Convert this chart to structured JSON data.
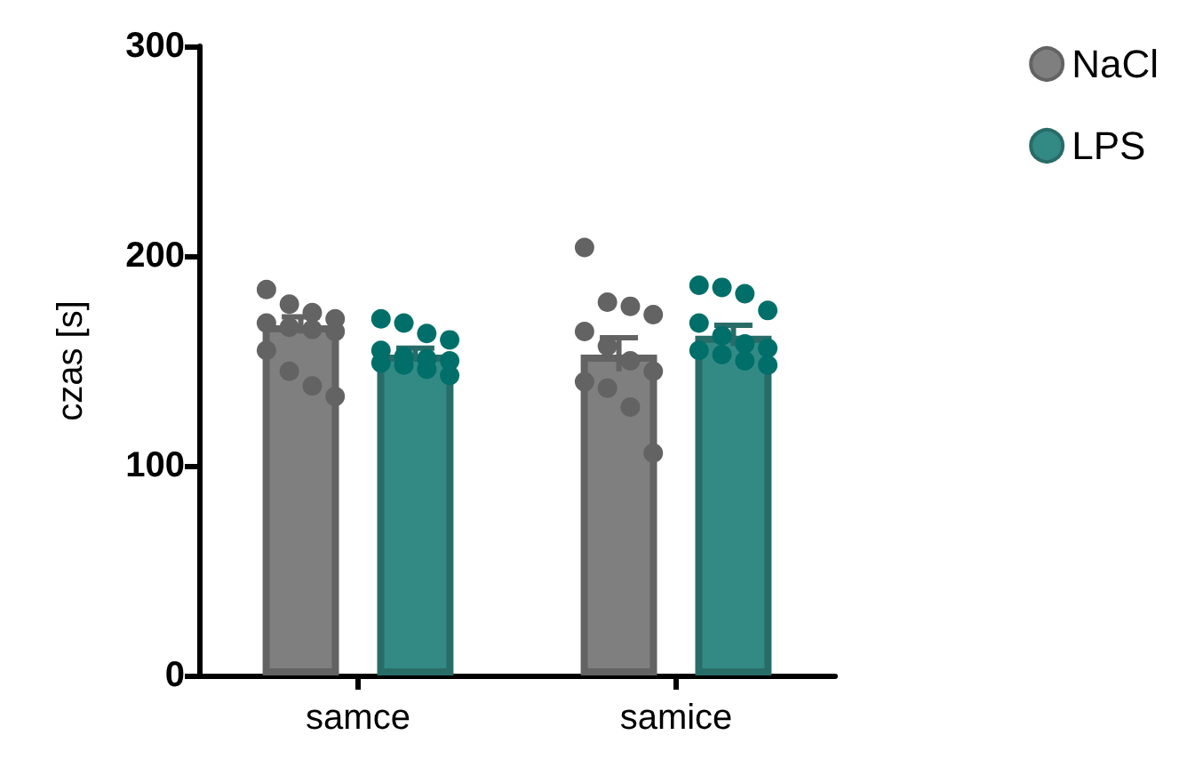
{
  "chart_data": {
    "type": "bar",
    "ylabel": "czas [s]",
    "categories": [
      "samce",
      "samice"
    ],
    "ylim": [
      0,
      300
    ],
    "yticks": [
      0,
      100,
      200,
      300
    ],
    "grid": false,
    "legend": "top right",
    "marker": "circle",
    "series": [
      {
        "name": "NaCl",
        "color": "#7f7f7f",
        "values": [
          167,
          153
        ],
        "errors": [
          4,
          8
        ]
      },
      {
        "name": "LPS",
        "color": "#338a85",
        "values": [
          153,
          162
        ],
        "errors": [
          3,
          5
        ]
      },
      {
        "type": "scatter",
        "color": "#636363",
        "x": [
          "samce",
          "samce",
          "samce",
          "samce",
          "samce",
          "samce",
          "samce",
          "samce",
          "samce",
          "samce",
          "samce",
          "samce",
          "samice",
          "samice",
          "samice",
          "samice",
          "samice",
          "samice",
          "samice",
          "samice",
          "samice",
          "samice",
          "samice",
          "samice"
        ],
        "values": [
          184,
          177,
          173,
          170,
          168,
          166,
          165,
          164,
          155,
          145,
          138,
          133,
          204,
          178,
          176,
          172,
          164,
          157,
          150,
          145,
          140,
          137,
          128,
          106
        ]
      },
      {
        "type": "scatter",
        "color": "#006f69",
        "x": [
          "samce",
          "samce",
          "samce",
          "samce",
          "samce",
          "samce",
          "samce",
          "samce",
          "samce",
          "samce",
          "samce",
          "samce",
          "samice",
          "samice",
          "samice",
          "samice",
          "samice",
          "samice",
          "samice",
          "samice",
          "samice",
          "samice",
          "samice",
          "samice"
        ],
        "values": [
          170,
          168,
          163,
          160,
          155,
          152,
          151,
          150,
          149,
          148,
          146,
          143,
          186,
          185,
          182,
          174,
          168,
          162,
          158,
          156,
          155,
          153,
          150,
          148
        ]
      }
    ]
  }
}
